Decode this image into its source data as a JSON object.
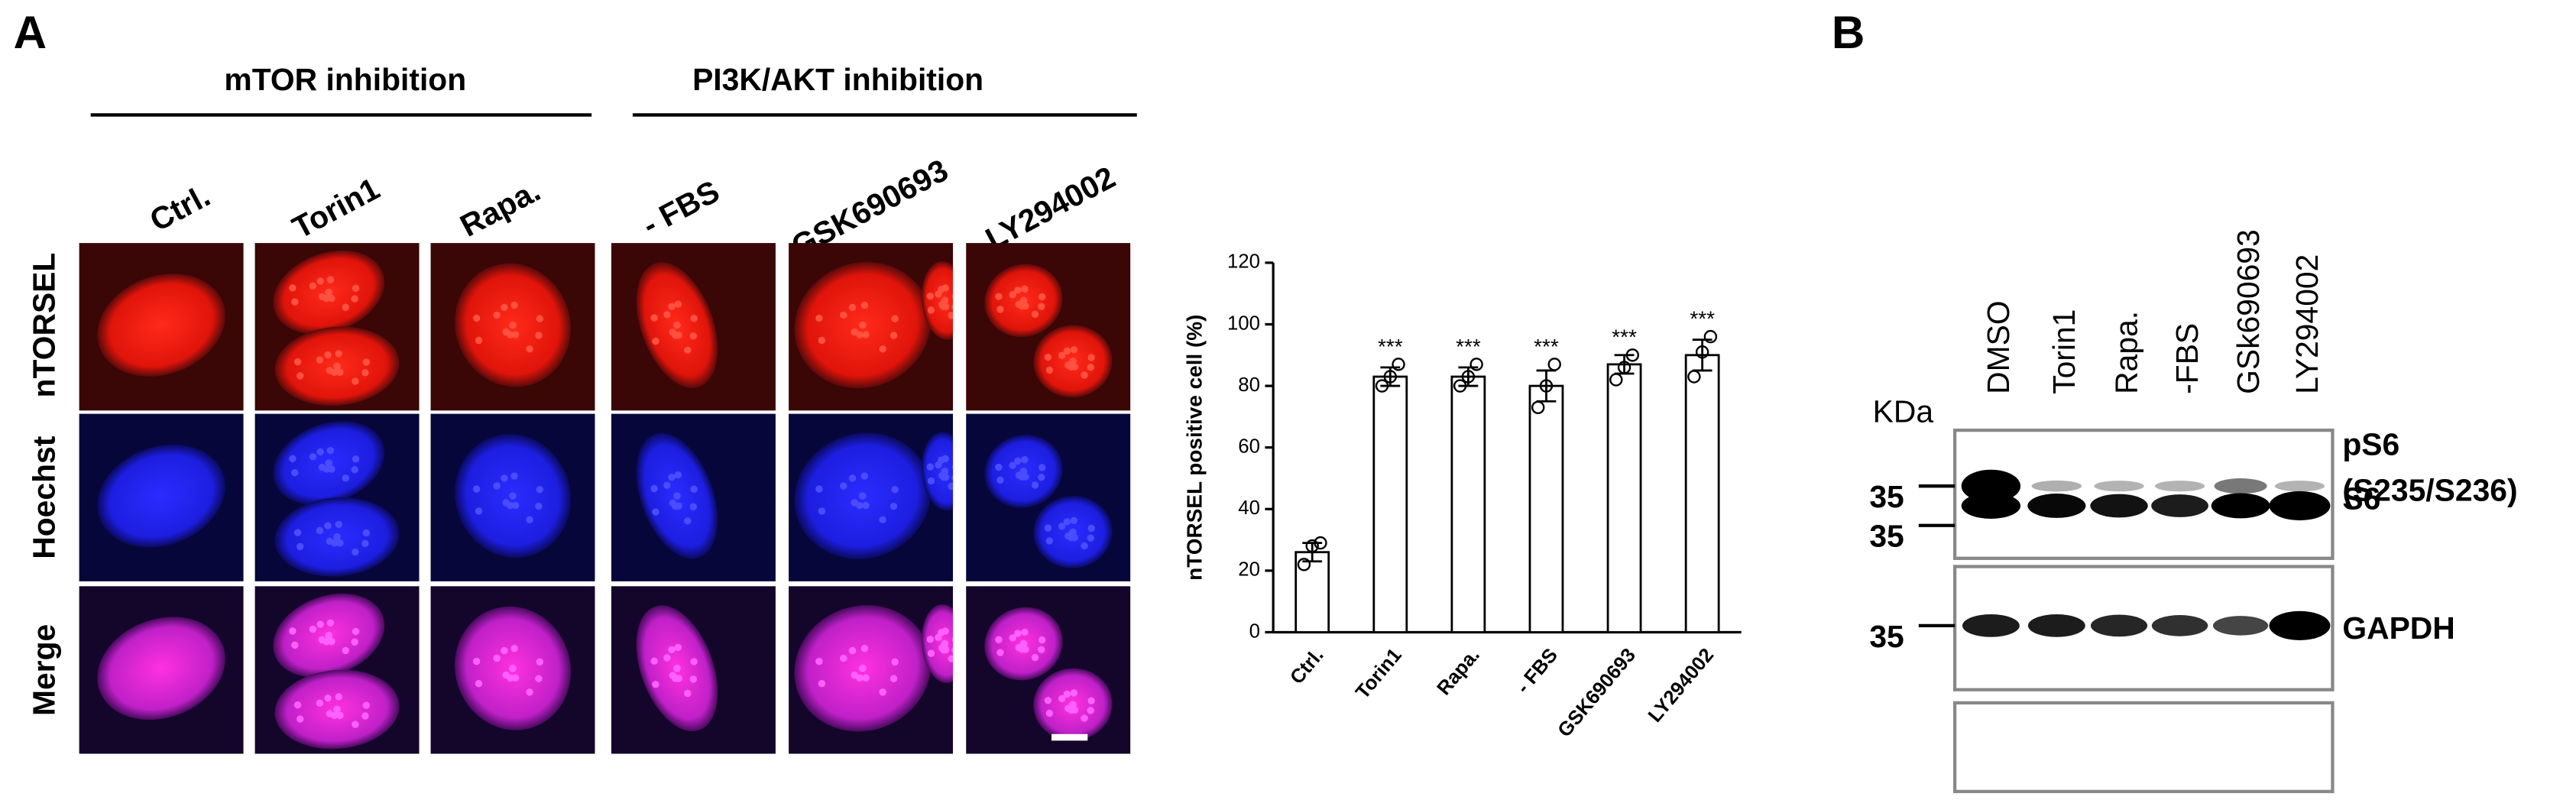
{
  "panel_a": {
    "label": "A",
    "groups": [
      "mTOR inhibition",
      "PI3K/AKT inhibition"
    ],
    "conditions": [
      "Ctrl.",
      "Torin1",
      "Rapa.",
      "- FBS",
      "GSK690693",
      "LY294002"
    ],
    "rows": [
      "nTORSEL",
      "Hoechst",
      "Merge"
    ]
  },
  "chart_data": {
    "type": "bar",
    "ylabel": "nTORSEL positive cell (%)",
    "categories": [
      "Ctrl.",
      "Torin1",
      "Rapa.",
      "- FBS",
      "GSK690693",
      "LY294002"
    ],
    "values": [
      26,
      83,
      83,
      80,
      87,
      90
    ],
    "errors": [
      3,
      3,
      3,
      5,
      3,
      5
    ],
    "points": [
      [
        22,
        28,
        29
      ],
      [
        80,
        83,
        87
      ],
      [
        80,
        83,
        87
      ],
      [
        73,
        80,
        87
      ],
      [
        82,
        86,
        90
      ],
      [
        83,
        91,
        96
      ]
    ],
    "significance": [
      null,
      "***",
      "***",
      "***",
      "***",
      "***"
    ],
    "color": "#ffffff",
    "ylim": [
      0,
      120
    ],
    "yticks": [
      0,
      20,
      40,
      60,
      80,
      100,
      120
    ]
  },
  "panel_b": {
    "label": "B",
    "lanes": [
      "DMSO",
      "Torin1",
      "Rapa.",
      "-FBS",
      "GSk690693",
      "LY294002"
    ],
    "unit": "KDa",
    "markers": [
      "35",
      "35",
      "35"
    ],
    "blots": [
      [
        "pS6",
        "(S235/S236)"
      ],
      [
        "S6"
      ],
      [
        "GAPDH"
      ]
    ]
  }
}
